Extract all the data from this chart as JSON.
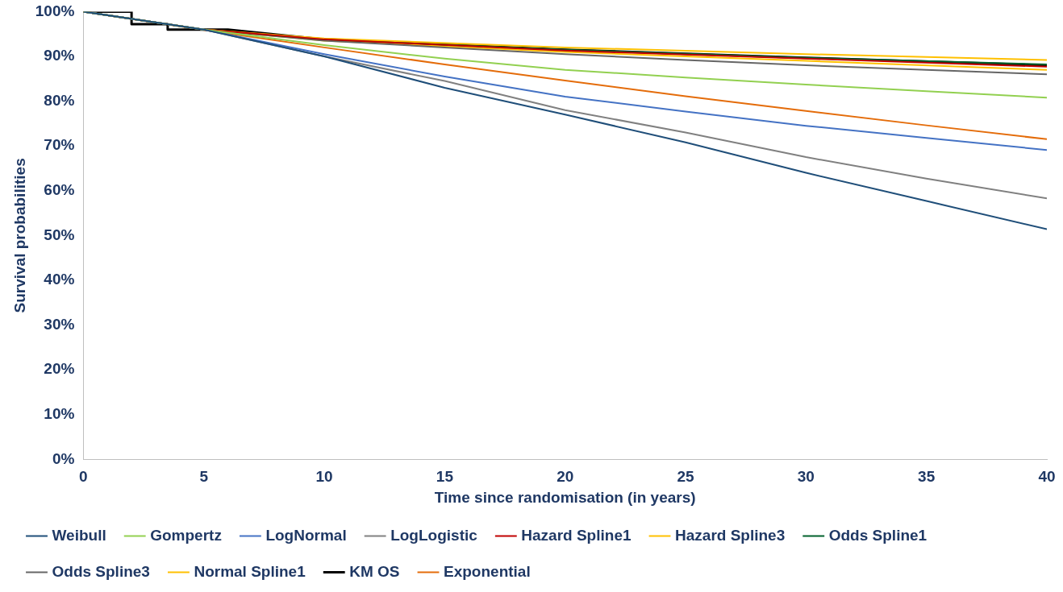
{
  "chart_data": {
    "type": "line",
    "xlabel": "Time since randomisation (in years)",
    "ylabel": "Survival probabilities",
    "x": [
      0,
      5,
      10,
      15,
      20,
      25,
      30,
      35,
      40
    ],
    "series": [
      {
        "name": "Weibull",
        "color": "#1f4e79",
        "values": [
          100,
          96,
          90,
          83,
          77,
          70.8,
          64,
          57.7,
          51.4
        ]
      },
      {
        "name": "Gompertz",
        "color": "#92d050",
        "values": [
          100,
          96,
          92.5,
          89.5,
          87,
          85.3,
          83.7,
          82.2,
          80.8
        ]
      },
      {
        "name": "LogNormal",
        "color": "#4472c4",
        "values": [
          100,
          96,
          90.5,
          85.5,
          81,
          77.7,
          74.5,
          71.8,
          69.1
        ]
      },
      {
        "name": "LogLogistic",
        "color": "#808080",
        "values": [
          100,
          96,
          90,
          84.5,
          78,
          73,
          67.5,
          62.7,
          58.3
        ]
      },
      {
        "name": "Hazard Spline1",
        "color": "#c00000",
        "x": [
          0,
          5,
          10,
          20,
          30,
          40
        ],
        "values": [
          100,
          96,
          93.8,
          91.3,
          89.5,
          87.7
        ]
      },
      {
        "name": "Hazard Spline3",
        "color": "#ffc000",
        "x": [
          0,
          5,
          10,
          20,
          30,
          40
        ],
        "values": [
          100,
          96,
          94,
          92,
          90.5,
          89.2
        ]
      },
      {
        "name": "Odds Spline1",
        "color": "#00602b",
        "x": [
          0,
          5,
          10,
          20,
          30,
          40
        ],
        "values": [
          100,
          96,
          93.8,
          91.5,
          89.7,
          88.2
        ]
      },
      {
        "name": "Odds Spline3",
        "color": "#666666",
        "values": [
          100,
          96,
          93.5,
          92,
          90.5,
          89.2,
          88,
          87,
          86
        ]
      },
      {
        "name": "Normal Spline1",
        "color": "#ffc000",
        "x": [
          0,
          5,
          10,
          20,
          30,
          40
        ],
        "values": [
          100,
          96,
          93.5,
          91,
          89,
          87
        ]
      },
      {
        "name": "KM OS",
        "color": "#000000",
        "x": [
          0,
          2,
          2,
          3.5,
          3.5,
          6,
          10,
          20,
          30,
          40
        ],
        "values": [
          100,
          100,
          97.2,
          97.2,
          96,
          96,
          93.8,
          91.5,
          89.7,
          88
        ]
      },
      {
        "name": "Exponential",
        "color": "#e46c0a",
        "values": [
          100,
          95.9,
          92,
          88.2,
          84.6,
          81.1,
          77.8,
          74.6,
          71.5
        ]
      }
    ],
    "xlim": [
      0,
      40
    ],
    "xticks": [
      0,
      5,
      10,
      15,
      20,
      25,
      30,
      35,
      40
    ],
    "ylim": [
      0,
      100
    ],
    "yticks": [
      {
        "value": 0,
        "label": "0%"
      },
      {
        "value": 10,
        "label": "10%"
      },
      {
        "value": 20,
        "label": "20%"
      },
      {
        "value": 30,
        "label": "30%"
      },
      {
        "value": 40,
        "label": "40%"
      },
      {
        "value": 50,
        "label": "50%"
      },
      {
        "value": 60,
        "label": "60%"
      },
      {
        "value": 70,
        "label": "70%"
      },
      {
        "value": 80,
        "label": "80%"
      },
      {
        "value": 90,
        "label": "90%"
      },
      {
        "value": 100,
        "label": "100%"
      }
    ],
    "legend": "bottom",
    "marker": "none",
    "line_style": "solid"
  }
}
